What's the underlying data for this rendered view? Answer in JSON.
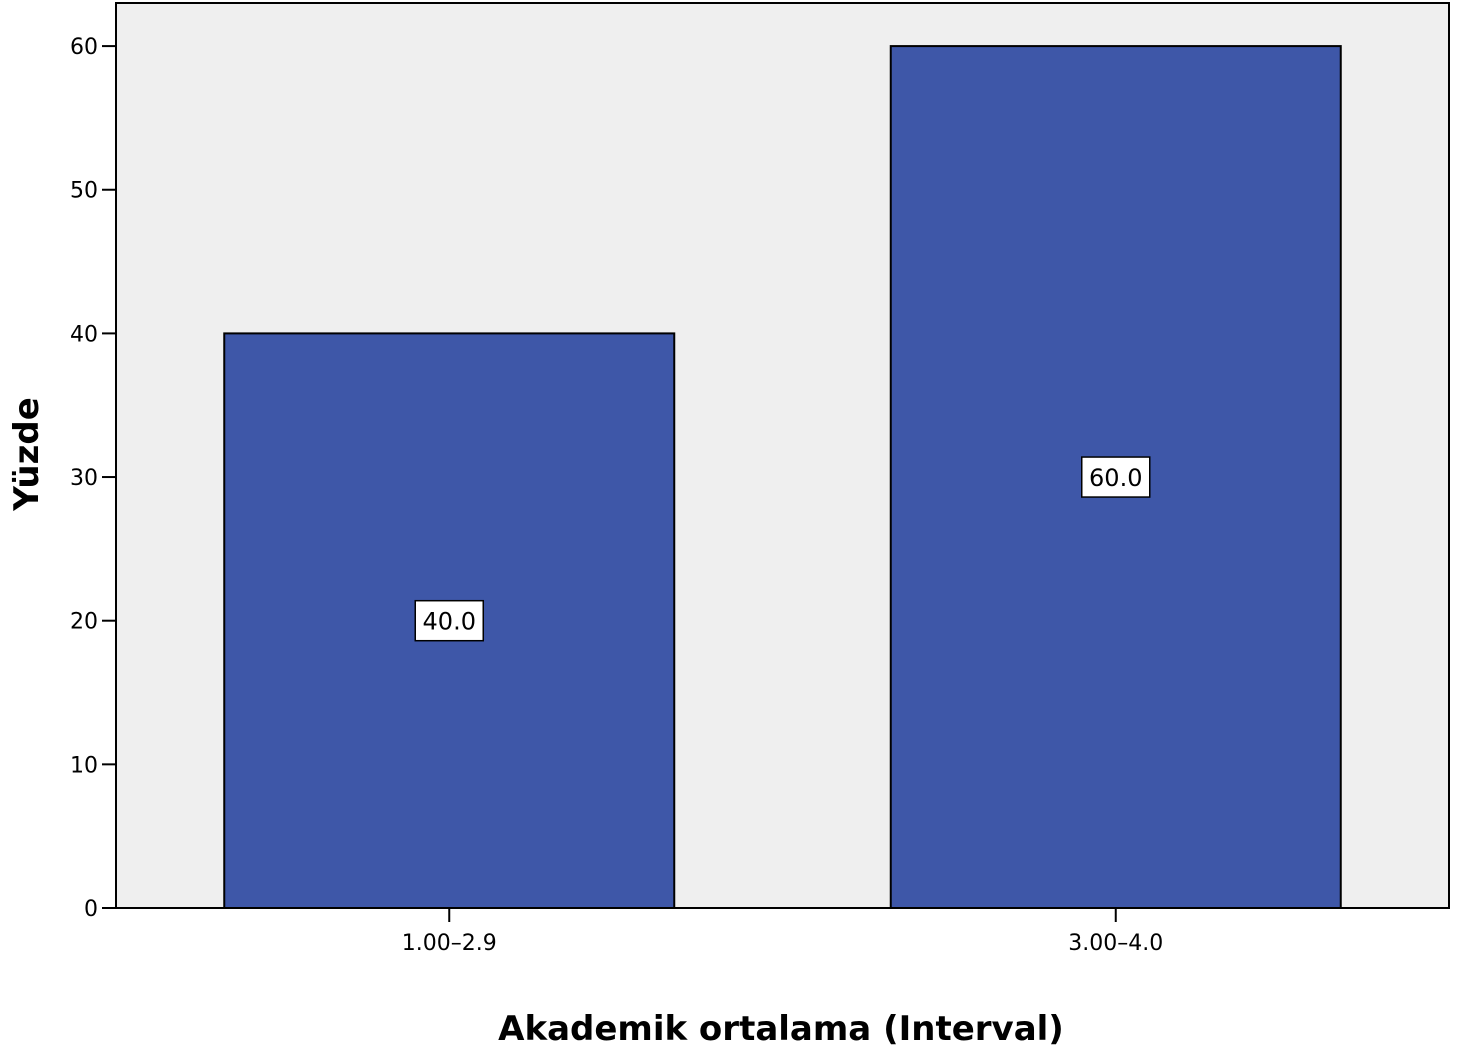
{
  "chart_data": {
    "type": "bar",
    "title": "",
    "xlabel": "Akademik ortalama (Interval)",
    "ylabel": "Yüzde",
    "categories": [
      "1.00–2.9",
      "3.00–4.0"
    ],
    "values": [
      40.0,
      60.0
    ],
    "data_labels": [
      "40.0",
      "60.0"
    ],
    "ylim": [
      0,
      63
    ],
    "yticks": [
      0,
      10,
      20,
      30,
      40,
      50,
      60
    ],
    "grid": false,
    "legend": "none"
  },
  "colors": {
    "bar_fill": "#3E57A8",
    "plot_background": "#EFEFEF",
    "axis": "#000000",
    "label_box": "#FFFFFF"
  }
}
